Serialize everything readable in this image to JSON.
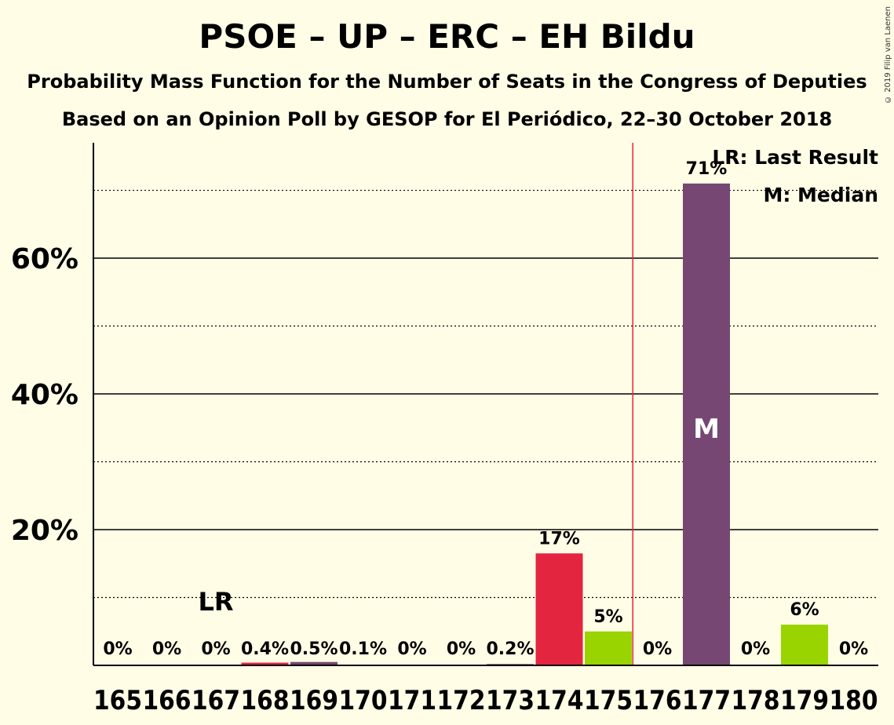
{
  "header": {
    "title": "PSOE – UP – ERC – EH Bildu",
    "subtitle1": "Probability Mass Function for the Number of Seats in the Congress of Deputies",
    "subtitle2": "Based on an Opinion Poll by GESOP for El Periódico, 22–30 October 2018",
    "copyright": "© 2019 Filip van Laenen"
  },
  "legend": {
    "lr": "LR: Last Result",
    "median": "M: Median"
  },
  "chart_data": {
    "type": "bar",
    "title": "PSOE – UP – ERC – EH Bildu",
    "categories": [
      "165",
      "166",
      "167",
      "168",
      "169",
      "170",
      "171",
      "172",
      "173",
      "174",
      "175",
      "176",
      "177",
      "178",
      "179",
      "180"
    ],
    "values": [
      0,
      0,
      0,
      0.4,
      0.5,
      0.1,
      0,
      0,
      0.2,
      16.5,
      5,
      0,
      71,
      0,
      6,
      0
    ],
    "labels": [
      "0%",
      "0%",
      "0%",
      "0.4%",
      "0.5%",
      "0.1%",
      "0%",
      "0%",
      "0.2%",
      "17%",
      "5%",
      "0%",
      "71%",
      "0%",
      "6%",
      "0%"
    ],
    "colors": [
      "#e3253f",
      "#e3253f",
      "#e3253f",
      "#e3253f",
      "#754772",
      "#754772",
      "#754772",
      "#754772",
      "#754772",
      "#e3253f",
      "#99d300",
      "#754772",
      "#754772",
      "#754772",
      "#99d300",
      "#754772"
    ],
    "ylim": [
      0,
      77
    ],
    "yticks": [
      20,
      40,
      60
    ],
    "ytick_labels": [
      "20%",
      "40%",
      "60%"
    ],
    "minor_yticks": [
      10,
      30,
      50,
      70
    ],
    "majority_line": 175.5,
    "majority_color": "#e3253f",
    "last_result_seat": "167",
    "last_result_label": "LR",
    "median_seat": "177",
    "median_label": "M"
  }
}
